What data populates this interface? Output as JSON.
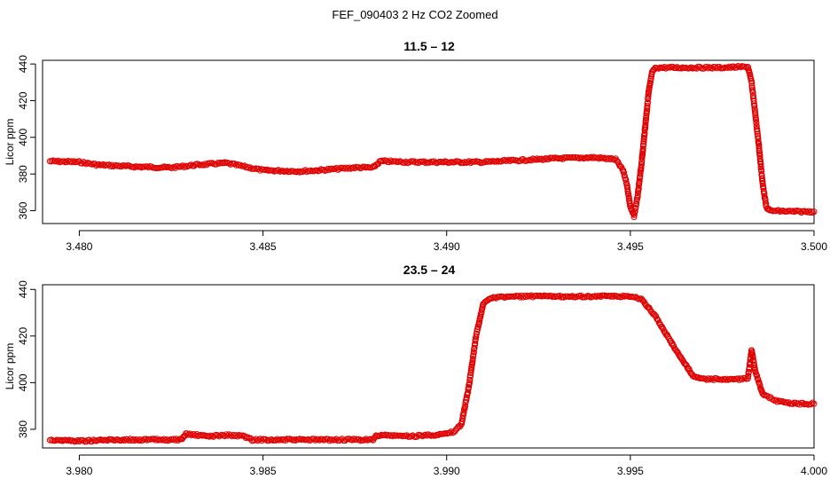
{
  "figure": {
    "title": "FEF_090403  2 Hz CO2 Zoomed"
  },
  "colors": {
    "points": "#e00000",
    "axis": "#000000"
  },
  "chart_data": [
    {
      "type": "scatter",
      "title": "11.5 – 12",
      "xlabel": "",
      "ylabel": "Licor ppm",
      "xlim": [
        3.479,
        3.5
      ],
      "ylim": [
        353,
        442
      ],
      "xticks": [
        3.48,
        3.485,
        3.49,
        3.495,
        3.5
      ],
      "xtick_labels": [
        "3.480",
        "3.485",
        "3.490",
        "3.495",
        "3.500"
      ],
      "yticks": [
        360,
        380,
        400,
        420,
        440
      ],
      "ytick_labels": [
        "360",
        "380",
        "400",
        "420",
        "440"
      ],
      "series": [
        {
          "marker": "open-circle",
          "points": [
            [
              3.4792,
              387
            ],
            [
              3.48,
              386.5
            ],
            [
              3.4805,
              385
            ],
            [
              3.4815,
              384
            ],
            [
              3.4825,
              383.5
            ],
            [
              3.4832,
              385
            ],
            [
              3.484,
              386
            ],
            [
              3.4845,
              384
            ],
            [
              3.485,
              382
            ],
            [
              3.486,
              381.5
            ],
            [
              3.4865,
              382
            ],
            [
              3.4875,
              383.5
            ],
            [
              3.488,
              383.5
            ],
            [
              3.4882,
              387
            ],
            [
              3.489,
              386.5
            ],
            [
              3.49,
              386.5
            ],
            [
              3.491,
              386.5
            ],
            [
              3.492,
              387.5
            ],
            [
              3.493,
              388.5
            ],
            [
              3.494,
              389
            ],
            [
              3.4946,
              388
            ],
            [
              3.4948,
              382
            ],
            [
              3.4949,
              375
            ],
            [
              3.495,
              362
            ],
            [
              3.4951,
              357
            ],
            [
              3.4952,
              368
            ],
            [
              3.4953,
              385
            ],
            [
              3.4954,
              405
            ],
            [
              3.4955,
              425
            ],
            [
              3.4956,
              436
            ],
            [
              3.4957,
              438
            ],
            [
              3.4965,
              438
            ],
            [
              3.4975,
              438
            ],
            [
              3.4982,
              438.5
            ],
            [
              3.4983,
              430
            ],
            [
              3.4984,
              413
            ],
            [
              3.4985,
              395
            ],
            [
              3.4986,
              375
            ],
            [
              3.4987,
              362
            ],
            [
              3.4988,
              360
            ],
            [
              3.4995,
              359.5
            ],
            [
              3.5,
              359.5
            ]
          ]
        }
      ]
    },
    {
      "type": "scatter",
      "title": "23.5 – 24",
      "xlabel": "",
      "ylabel": "Licor ppm",
      "xlim": [
        3.979,
        4.0
      ],
      "ylim": [
        372,
        442
      ],
      "xticks": [
        3.98,
        3.985,
        3.99,
        3.995,
        4.0
      ],
      "xtick_labels": [
        "3.980",
        "3.985",
        "3.990",
        "3.995",
        "4.000"
      ],
      "yticks": [
        380,
        400,
        420,
        440
      ],
      "ytick_labels": [
        "380",
        "400",
        "420",
        "440"
      ],
      "series": [
        {
          "marker": "open-circle",
          "points": [
            [
              3.9792,
              375.5
            ],
            [
              3.98,
              375
            ],
            [
              3.981,
              375.5
            ],
            [
              3.982,
              375.5
            ],
            [
              3.9828,
              375.5
            ],
            [
              3.9829,
              378
            ],
            [
              3.9835,
              377
            ],
            [
              3.984,
              377.5
            ],
            [
              3.9845,
              377
            ],
            [
              3.9847,
              375.5
            ],
            [
              3.9855,
              375.5
            ],
            [
              3.9865,
              375.5
            ],
            [
              3.9875,
              375.5
            ],
            [
              3.988,
              375.5
            ],
            [
              3.9881,
              377.5
            ],
            [
              3.989,
              377
            ],
            [
              3.99,
              378
            ],
            [
              3.9902,
              379
            ],
            [
              3.9904,
              382
            ],
            [
              3.9906,
              398
            ],
            [
              3.9908,
              420
            ],
            [
              3.991,
              434
            ],
            [
              3.9912,
              436.5
            ],
            [
              3.992,
              437
            ],
            [
              3.993,
              437
            ],
            [
              3.994,
              437
            ],
            [
              3.995,
              437
            ],
            [
              3.9953,
              436
            ],
            [
              3.9957,
              428
            ],
            [
              3.9962,
              415
            ],
            [
              3.9967,
              403
            ],
            [
              3.997,
              401.5
            ],
            [
              3.9975,
              401.5
            ],
            [
              3.998,
              401.5
            ],
            [
              3.9982,
              402
            ],
            [
              3.9983,
              414
            ],
            [
              3.9984,
              405
            ],
            [
              3.9986,
              395
            ],
            [
              3.999,
              392
            ],
            [
              3.9995,
              391
            ],
            [
              4.0,
              391
            ]
          ]
        }
      ]
    }
  ]
}
